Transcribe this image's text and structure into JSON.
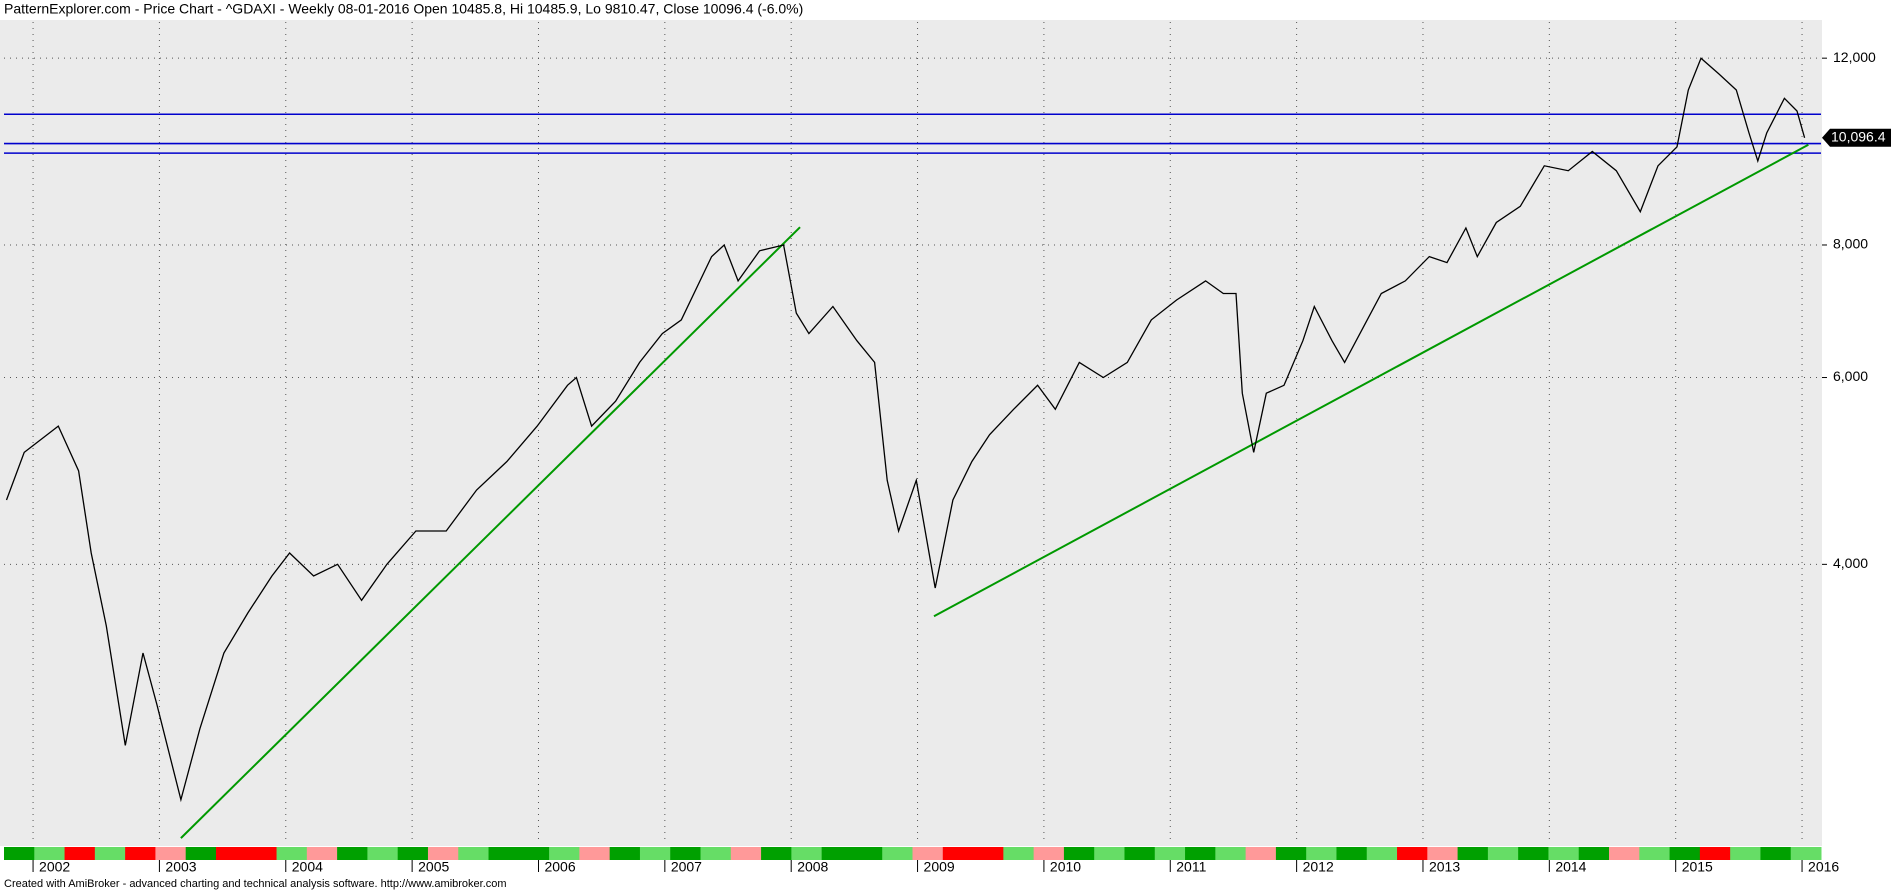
{
  "chart_data": {
    "type": "line",
    "title": "PatternExplorer.com - Price Chart - ^GDAXI - Weekly 08-01-2016 Open 10485.8, Hi 10485.9, Lo 9810.47, Close 10096.4 (-6.0%)",
    "footer": "Created with AmiBroker - advanced charting and technical analysis software. http://www.amibroker.com",
    "log_scale": true,
    "grid": true,
    "xlim": [
      2001.77,
      2016.15
    ],
    "xticks": [
      2002,
      2003,
      2004,
      2005,
      2006,
      2007,
      2008,
      2009,
      2010,
      2011,
      2012,
      2013,
      2014,
      2015,
      2016
    ],
    "ylim": [
      2180,
      12980
    ],
    "yticks": [
      {
        "value": 4000,
        "label": "4,000"
      },
      {
        "value": 6000,
        "label": "6,000"
      },
      {
        "value": 8000,
        "label": "8,000"
      },
      {
        "value": 12000,
        "label": "12,000"
      }
    ],
    "series": [
      {
        "color": "#000000",
        "x": [
          2001.79,
          2001.93,
          2002.2,
          2002.36,
          2002.46,
          2002.58,
          2002.73,
          2002.87,
          2002.98,
          2003.17,
          2003.32,
          2003.51,
          2003.7,
          2003.89,
          2004.03,
          2004.22,
          2004.41,
          2004.6,
          2004.8,
          2005.03,
          2005.27,
          2005.51,
          2005.75,
          2005.99,
          2006.23,
          2006.3,
          2006.42,
          2006.61,
          2006.8,
          2006.98,
          2007.13,
          2007.37,
          2007.47,
          2007.58,
          2007.75,
          2007.94,
          2008.04,
          2008.14,
          2008.33,
          2008.52,
          2008.66,
          2008.76,
          2008.85,
          2008.99,
          2009.14,
          2009.28,
          2009.43,
          2009.57,
          2009.76,
          2009.95,
          2010.09,
          2010.28,
          2010.47,
          2010.66,
          2010.85,
          2011.05,
          2011.28,
          2011.42,
          2011.52,
          2011.57,
          2011.66,
          2011.76,
          2011.9,
          2012.05,
          2012.14,
          2012.28,
          2012.38,
          2012.53,
          2012.67,
          2012.86,
          2013.05,
          2013.19,
          2013.34,
          2013.43,
          2013.58,
          2013.77,
          2013.96,
          2014.15,
          2014.34,
          2014.53,
          2014.72,
          2014.86,
          2015.01,
          2015.1,
          2015.2,
          2015.34,
          2015.48,
          2015.58,
          2015.65,
          2015.72,
          2015.86,
          2015.96,
          2016.02
        ],
        "values": [
          4600,
          5100,
          5400,
          4900,
          4100,
          3500,
          2700,
          3300,
          2950,
          2400,
          2800,
          3300,
          3600,
          3900,
          4100,
          3900,
          4000,
          3700,
          4000,
          4300,
          4300,
          4700,
          5000,
          5400,
          5900,
          6000,
          5400,
          5700,
          6200,
          6600,
          6800,
          7800,
          8000,
          7400,
          7900,
          8000,
          6900,
          6600,
          7000,
          6500,
          6200,
          4800,
          4300,
          4800,
          3800,
          4600,
          5000,
          5300,
          5600,
          5900,
          5600,
          6200,
          6000,
          6200,
          6800,
          7100,
          7400,
          7200,
          7200,
          5800,
          5100,
          5800,
          5900,
          6500,
          7000,
          6500,
          6200,
          6700,
          7200,
          7400,
          7800,
          7700,
          8300,
          7800,
          8400,
          8700,
          9500,
          9400,
          9800,
          9400,
          8600,
          9500,
          9900,
          11200,
          12000,
          11600,
          11200,
          10200,
          9600,
          10200,
          11000,
          10700,
          10096.4
        ],
        "last_value_label": "10,096.4"
      }
    ],
    "hlines": {
      "color": "#0000cc",
      "values": [
        10625,
        9970,
        9765
      ]
    },
    "trendlines": {
      "color": "#009900",
      "lines": [
        {
          "x": [
            2003.17,
            2008.07
          ],
          "values": [
            2208,
            8315
          ]
        },
        {
          "x": [
            2009.13,
            2016.05
          ],
          "values": [
            3574,
            9944
          ]
        }
      ]
    },
    "ribbon_colors": [
      "#00a000",
      "#66dd66",
      "#ff0000",
      "#66dd66",
      "#ff0000",
      "#ff9999",
      "#00a000",
      "#ff0000",
      "#ff0000",
      "#66dd66",
      "#ff9999",
      "#00a000",
      "#66dd66",
      "#00a000",
      "#ff9999",
      "#66dd66",
      "#00a000",
      "#00a000",
      "#66dd66",
      "#ff9999",
      "#00a000",
      "#66dd66",
      "#00a000",
      "#66dd66",
      "#ff9999",
      "#00a000",
      "#66dd66",
      "#00a000",
      "#00a000",
      "#66dd66",
      "#ff9999",
      "#ff0000",
      "#ff0000",
      "#66dd66",
      "#ff9999",
      "#00a000",
      "#66dd66",
      "#00a000",
      "#66dd66",
      "#00a000",
      "#66dd66",
      "#ff9999",
      "#00a000",
      "#66dd66",
      "#00a000",
      "#66dd66",
      "#ff0000",
      "#ff9999",
      "#00a000",
      "#66dd66",
      "#00a000",
      "#66dd66",
      "#00a000",
      "#ff9999",
      "#66dd66",
      "#00a000",
      "#ff0000",
      "#66dd66",
      "#00a000",
      "#66dd66"
    ]
  }
}
